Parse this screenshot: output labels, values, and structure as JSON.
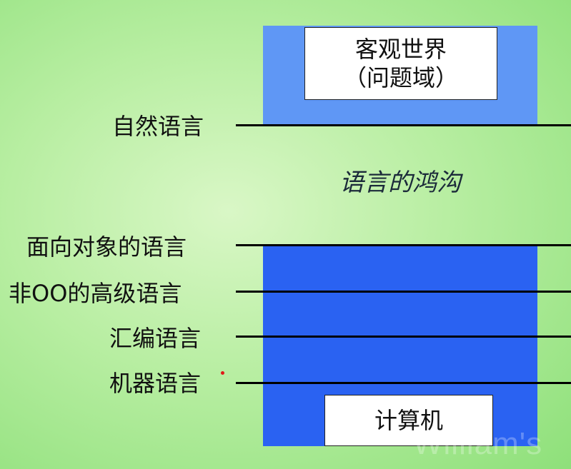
{
  "diagram": {
    "top_box": {
      "line1": "客观世界",
      "line2": "（问题域）"
    },
    "bottom_box": "计算机",
    "gap_label": "语言的鸿沟",
    "levels": [
      "自然语言",
      "面向对象的语言",
      "非OO的高级语言",
      "汇编语言",
      "机器语言"
    ],
    "watermark": "William's"
  },
  "colors": {
    "background": "#b8eea2",
    "top_panel": "#5f97f5",
    "bottom_panel": "#2a62f2",
    "line": "#000000"
  }
}
